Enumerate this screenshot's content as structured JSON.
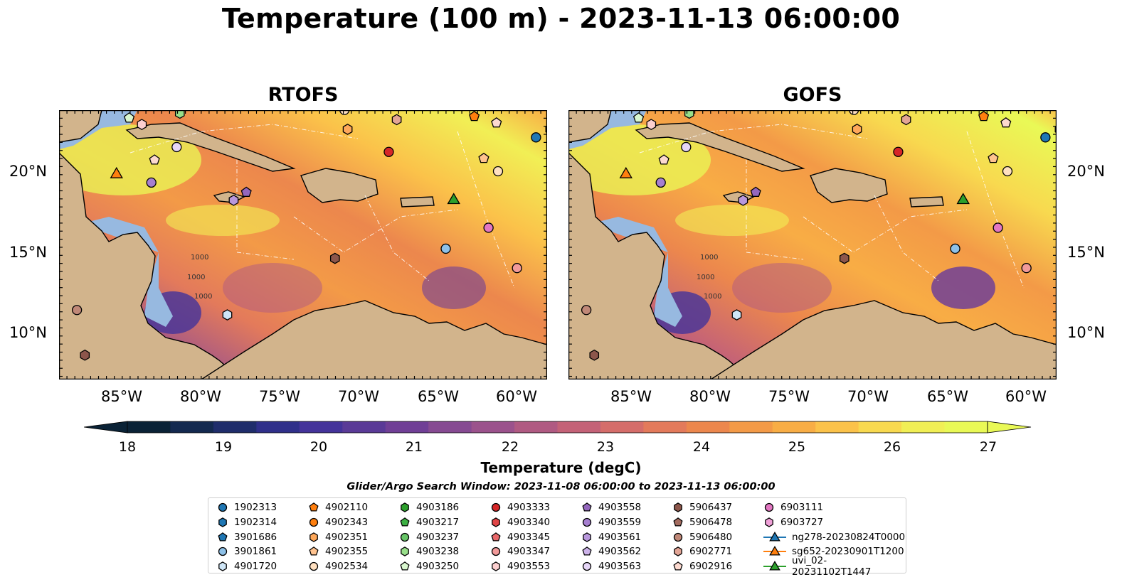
{
  "title": "Temperature (100 m) - 2023-11-13 06:00:00",
  "panels": [
    {
      "title": "RTOFS"
    },
    {
      "title": "GOFS"
    }
  ],
  "axes": {
    "lon_ticks": [
      "85°W",
      "80°W",
      "75°W",
      "70°W",
      "65°W",
      "60°W"
    ],
    "lat_ticks": [
      "20°N",
      "15°N",
      "10°N"
    ]
  },
  "colorbar": {
    "label": "Temperature (degC)",
    "ticks": [
      "18",
      "19",
      "20",
      "21",
      "22",
      "23",
      "24",
      "25",
      "26",
      "27"
    ],
    "colors": [
      "#0a2236",
      "#13294f",
      "#1f2d6b",
      "#2f2f8a",
      "#44339a",
      "#5a3a97",
      "#703f96",
      "#864a92",
      "#9b528c",
      "#b05a82",
      "#c46277",
      "#d56d6a",
      "#e37a5b",
      "#ec874d",
      "#f39a47",
      "#f8ad45",
      "#fbc24a",
      "#f8d94f",
      "#f1ef55",
      "#e9f956"
    ]
  },
  "contour_labels": [
    "1000",
    "1000",
    "1000"
  ],
  "search_window": "Glider/Argo Search Window: 2023-11-08 06:00:00 to 2023-11-13 06:00:00",
  "legend": [
    {
      "label": "1902313",
      "marker": "circle",
      "color": "#1f77b4"
    },
    {
      "label": "1902314",
      "marker": "hexagon",
      "color": "#1f77b4"
    },
    {
      "label": "3901686",
      "marker": "pentagon",
      "color": "#1f77b4"
    },
    {
      "label": "3901861",
      "marker": "circle",
      "color": "#8ec1e8"
    },
    {
      "label": "4901720",
      "marker": "hexagon",
      "color": "#cfe6f7"
    },
    {
      "label": "4902110",
      "marker": "pentagon",
      "color": "#ff7f0e"
    },
    {
      "label": "4902343",
      "marker": "circle",
      "color": "#ff7f0e"
    },
    {
      "label": "4902351",
      "marker": "hexagon",
      "color": "#ffa85a"
    },
    {
      "label": "4902355",
      "marker": "pentagon",
      "color": "#ffc38f"
    },
    {
      "label": "4902534",
      "marker": "circle",
      "color": "#ffe0c0"
    },
    {
      "label": "4903186",
      "marker": "hexagon",
      "color": "#2ca02c"
    },
    {
      "label": "4903217",
      "marker": "pentagon",
      "color": "#3cb043"
    },
    {
      "label": "4903237",
      "marker": "circle",
      "color": "#66c466"
    },
    {
      "label": "4903238",
      "marker": "hexagon",
      "color": "#98df8a"
    },
    {
      "label": "4903250",
      "marker": "pentagon",
      "color": "#d9f7cf"
    },
    {
      "label": "4903333",
      "marker": "circle",
      "color": "#d62728"
    },
    {
      "label": "4903340",
      "marker": "hexagon",
      "color": "#e04546"
    },
    {
      "label": "4903345",
      "marker": "pentagon",
      "color": "#e8686a"
    },
    {
      "label": "4903347",
      "marker": "circle",
      "color": "#f29a9a"
    },
    {
      "label": "4903553",
      "marker": "hexagon",
      "color": "#fccfcf"
    },
    {
      "label": "4903558",
      "marker": "pentagon",
      "color": "#9467bd"
    },
    {
      "label": "4903559",
      "marker": "circle",
      "color": "#a67fd0"
    },
    {
      "label": "4903561",
      "marker": "hexagon",
      "color": "#b897dc"
    },
    {
      "label": "4903562",
      "marker": "pentagon",
      "color": "#cdb3ea"
    },
    {
      "label": "4903563",
      "marker": "circle",
      "color": "#e6d6f7"
    },
    {
      "label": "5906437",
      "marker": "hexagon",
      "color": "#8c564b"
    },
    {
      "label": "5906478",
      "marker": "pentagon",
      "color": "#a36b5f"
    },
    {
      "label": "5906480",
      "marker": "circle",
      "color": "#c08878"
    },
    {
      "label": "6902771",
      "marker": "hexagon",
      "color": "#e3a596"
    },
    {
      "label": "6902916",
      "marker": "pentagon",
      "color": "#fcd9cf"
    },
    {
      "label": "6903111",
      "marker": "circle",
      "color": "#e377c2"
    },
    {
      "label": "6903727",
      "marker": "hexagon",
      "color": "#f0a0d8"
    },
    {
      "label": "ng278-20230824T0000",
      "marker": "triangle-line",
      "color": "#1f77b4"
    },
    {
      "label": "sg652-20230901T1200",
      "marker": "triangle-line",
      "color": "#ff7f0e"
    },
    {
      "label": "uvi_02-20231102T1447",
      "marker": "triangle-line",
      "color": "#2ca02c"
    }
  ],
  "colors": {
    "land": "#d2b48c",
    "shelf": "#97b9e0",
    "pacific": "#0c2336"
  }
}
